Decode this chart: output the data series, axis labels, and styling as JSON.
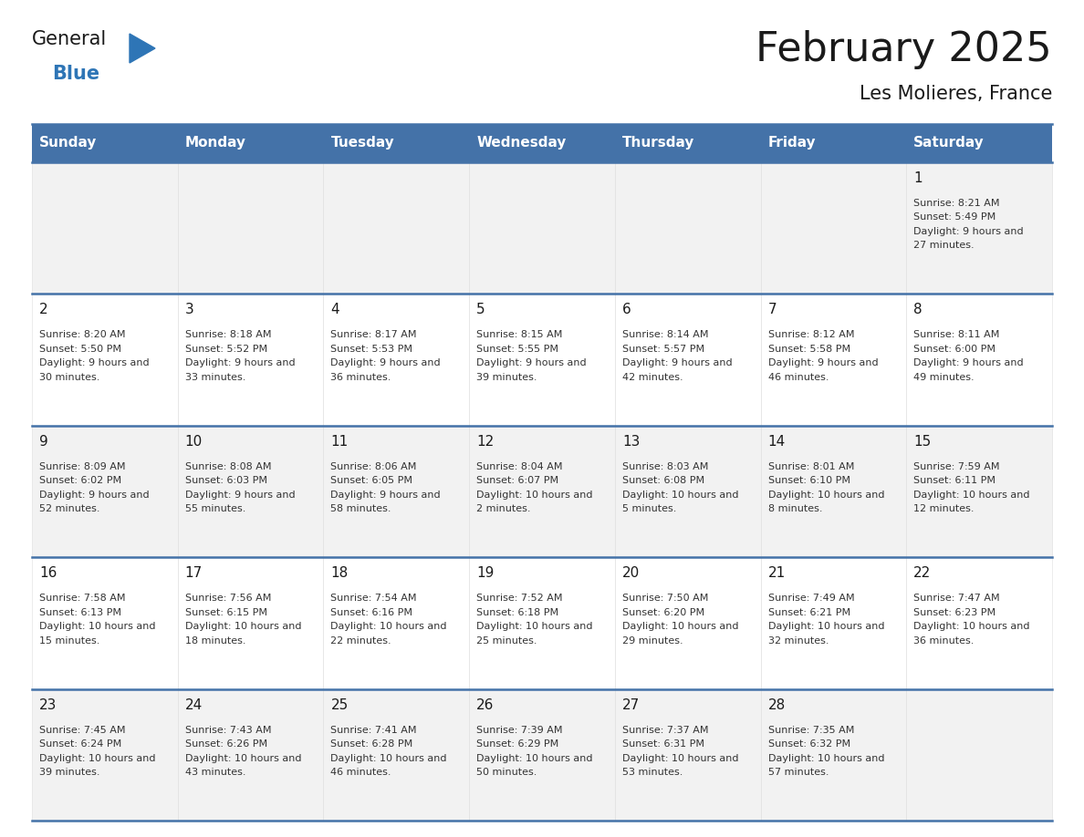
{
  "title": "February 2025",
  "subtitle": "Les Molieres, France",
  "header_color": "#4472A8",
  "header_text_color": "#FFFFFF",
  "cell_bg_odd": "#F2F2F2",
  "cell_bg_even": "#FFFFFF",
  "border_color": "#4472A8",
  "text_color": "#333333",
  "day_number_color": "#1a1a1a",
  "day_headers": [
    "Sunday",
    "Monday",
    "Tuesday",
    "Wednesday",
    "Thursday",
    "Friday",
    "Saturday"
  ],
  "days": [
    {
      "day": 1,
      "col": 6,
      "row": 0,
      "sunrise": "8:21 AM",
      "sunset": "5:49 PM",
      "daylight": "9 hours and 27 minutes."
    },
    {
      "day": 2,
      "col": 0,
      "row": 1,
      "sunrise": "8:20 AM",
      "sunset": "5:50 PM",
      "daylight": "9 hours and 30 minutes."
    },
    {
      "day": 3,
      "col": 1,
      "row": 1,
      "sunrise": "8:18 AM",
      "sunset": "5:52 PM",
      "daylight": "9 hours and 33 minutes."
    },
    {
      "day": 4,
      "col": 2,
      "row": 1,
      "sunrise": "8:17 AM",
      "sunset": "5:53 PM",
      "daylight": "9 hours and 36 minutes."
    },
    {
      "day": 5,
      "col": 3,
      "row": 1,
      "sunrise": "8:15 AM",
      "sunset": "5:55 PM",
      "daylight": "9 hours and 39 minutes."
    },
    {
      "day": 6,
      "col": 4,
      "row": 1,
      "sunrise": "8:14 AM",
      "sunset": "5:57 PM",
      "daylight": "9 hours and 42 minutes."
    },
    {
      "day": 7,
      "col": 5,
      "row": 1,
      "sunrise": "8:12 AM",
      "sunset": "5:58 PM",
      "daylight": "9 hours and 46 minutes."
    },
    {
      "day": 8,
      "col": 6,
      "row": 1,
      "sunrise": "8:11 AM",
      "sunset": "6:00 PM",
      "daylight": "9 hours and 49 minutes."
    },
    {
      "day": 9,
      "col": 0,
      "row": 2,
      "sunrise": "8:09 AM",
      "sunset": "6:02 PM",
      "daylight": "9 hours and 52 minutes."
    },
    {
      "day": 10,
      "col": 1,
      "row": 2,
      "sunrise": "8:08 AM",
      "sunset": "6:03 PM",
      "daylight": "9 hours and 55 minutes."
    },
    {
      "day": 11,
      "col": 2,
      "row": 2,
      "sunrise": "8:06 AM",
      "sunset": "6:05 PM",
      "daylight": "9 hours and 58 minutes."
    },
    {
      "day": 12,
      "col": 3,
      "row": 2,
      "sunrise": "8:04 AM",
      "sunset": "6:07 PM",
      "daylight": "10 hours and 2 minutes."
    },
    {
      "day": 13,
      "col": 4,
      "row": 2,
      "sunrise": "8:03 AM",
      "sunset": "6:08 PM",
      "daylight": "10 hours and 5 minutes."
    },
    {
      "day": 14,
      "col": 5,
      "row": 2,
      "sunrise": "8:01 AM",
      "sunset": "6:10 PM",
      "daylight": "10 hours and 8 minutes."
    },
    {
      "day": 15,
      "col": 6,
      "row": 2,
      "sunrise": "7:59 AM",
      "sunset": "6:11 PM",
      "daylight": "10 hours and 12 minutes."
    },
    {
      "day": 16,
      "col": 0,
      "row": 3,
      "sunrise": "7:58 AM",
      "sunset": "6:13 PM",
      "daylight": "10 hours and 15 minutes."
    },
    {
      "day": 17,
      "col": 1,
      "row": 3,
      "sunrise": "7:56 AM",
      "sunset": "6:15 PM",
      "daylight": "10 hours and 18 minutes."
    },
    {
      "day": 18,
      "col": 2,
      "row": 3,
      "sunrise": "7:54 AM",
      "sunset": "6:16 PM",
      "daylight": "10 hours and 22 minutes."
    },
    {
      "day": 19,
      "col": 3,
      "row": 3,
      "sunrise": "7:52 AM",
      "sunset": "6:18 PM",
      "daylight": "10 hours and 25 minutes."
    },
    {
      "day": 20,
      "col": 4,
      "row": 3,
      "sunrise": "7:50 AM",
      "sunset": "6:20 PM",
      "daylight": "10 hours and 29 minutes."
    },
    {
      "day": 21,
      "col": 5,
      "row": 3,
      "sunrise": "7:49 AM",
      "sunset": "6:21 PM",
      "daylight": "10 hours and 32 minutes."
    },
    {
      "day": 22,
      "col": 6,
      "row": 3,
      "sunrise": "7:47 AM",
      "sunset": "6:23 PM",
      "daylight": "10 hours and 36 minutes."
    },
    {
      "day": 23,
      "col": 0,
      "row": 4,
      "sunrise": "7:45 AM",
      "sunset": "6:24 PM",
      "daylight": "10 hours and 39 minutes."
    },
    {
      "day": 24,
      "col": 1,
      "row": 4,
      "sunrise": "7:43 AM",
      "sunset": "6:26 PM",
      "daylight": "10 hours and 43 minutes."
    },
    {
      "day": 25,
      "col": 2,
      "row": 4,
      "sunrise": "7:41 AM",
      "sunset": "6:28 PM",
      "daylight": "10 hours and 46 minutes."
    },
    {
      "day": 26,
      "col": 3,
      "row": 4,
      "sunrise": "7:39 AM",
      "sunset": "6:29 PM",
      "daylight": "10 hours and 50 minutes."
    },
    {
      "day": 27,
      "col": 4,
      "row": 4,
      "sunrise": "7:37 AM",
      "sunset": "6:31 PM",
      "daylight": "10 hours and 53 minutes."
    },
    {
      "day": 28,
      "col": 5,
      "row": 4,
      "sunrise": "7:35 AM",
      "sunset": "6:32 PM",
      "daylight": "10 hours and 57 minutes."
    }
  ],
  "num_rows": 5,
  "logo_text_general": "General",
  "logo_text_blue": "Blue",
  "logo_triangle_color": "#2E75B6",
  "logo_general_color": "#1a1a1a",
  "logo_blue_color": "#2E75B6",
  "title_fontsize": 32,
  "subtitle_fontsize": 15,
  "header_fontsize": 11,
  "day_num_fontsize": 11,
  "info_fontsize": 8
}
